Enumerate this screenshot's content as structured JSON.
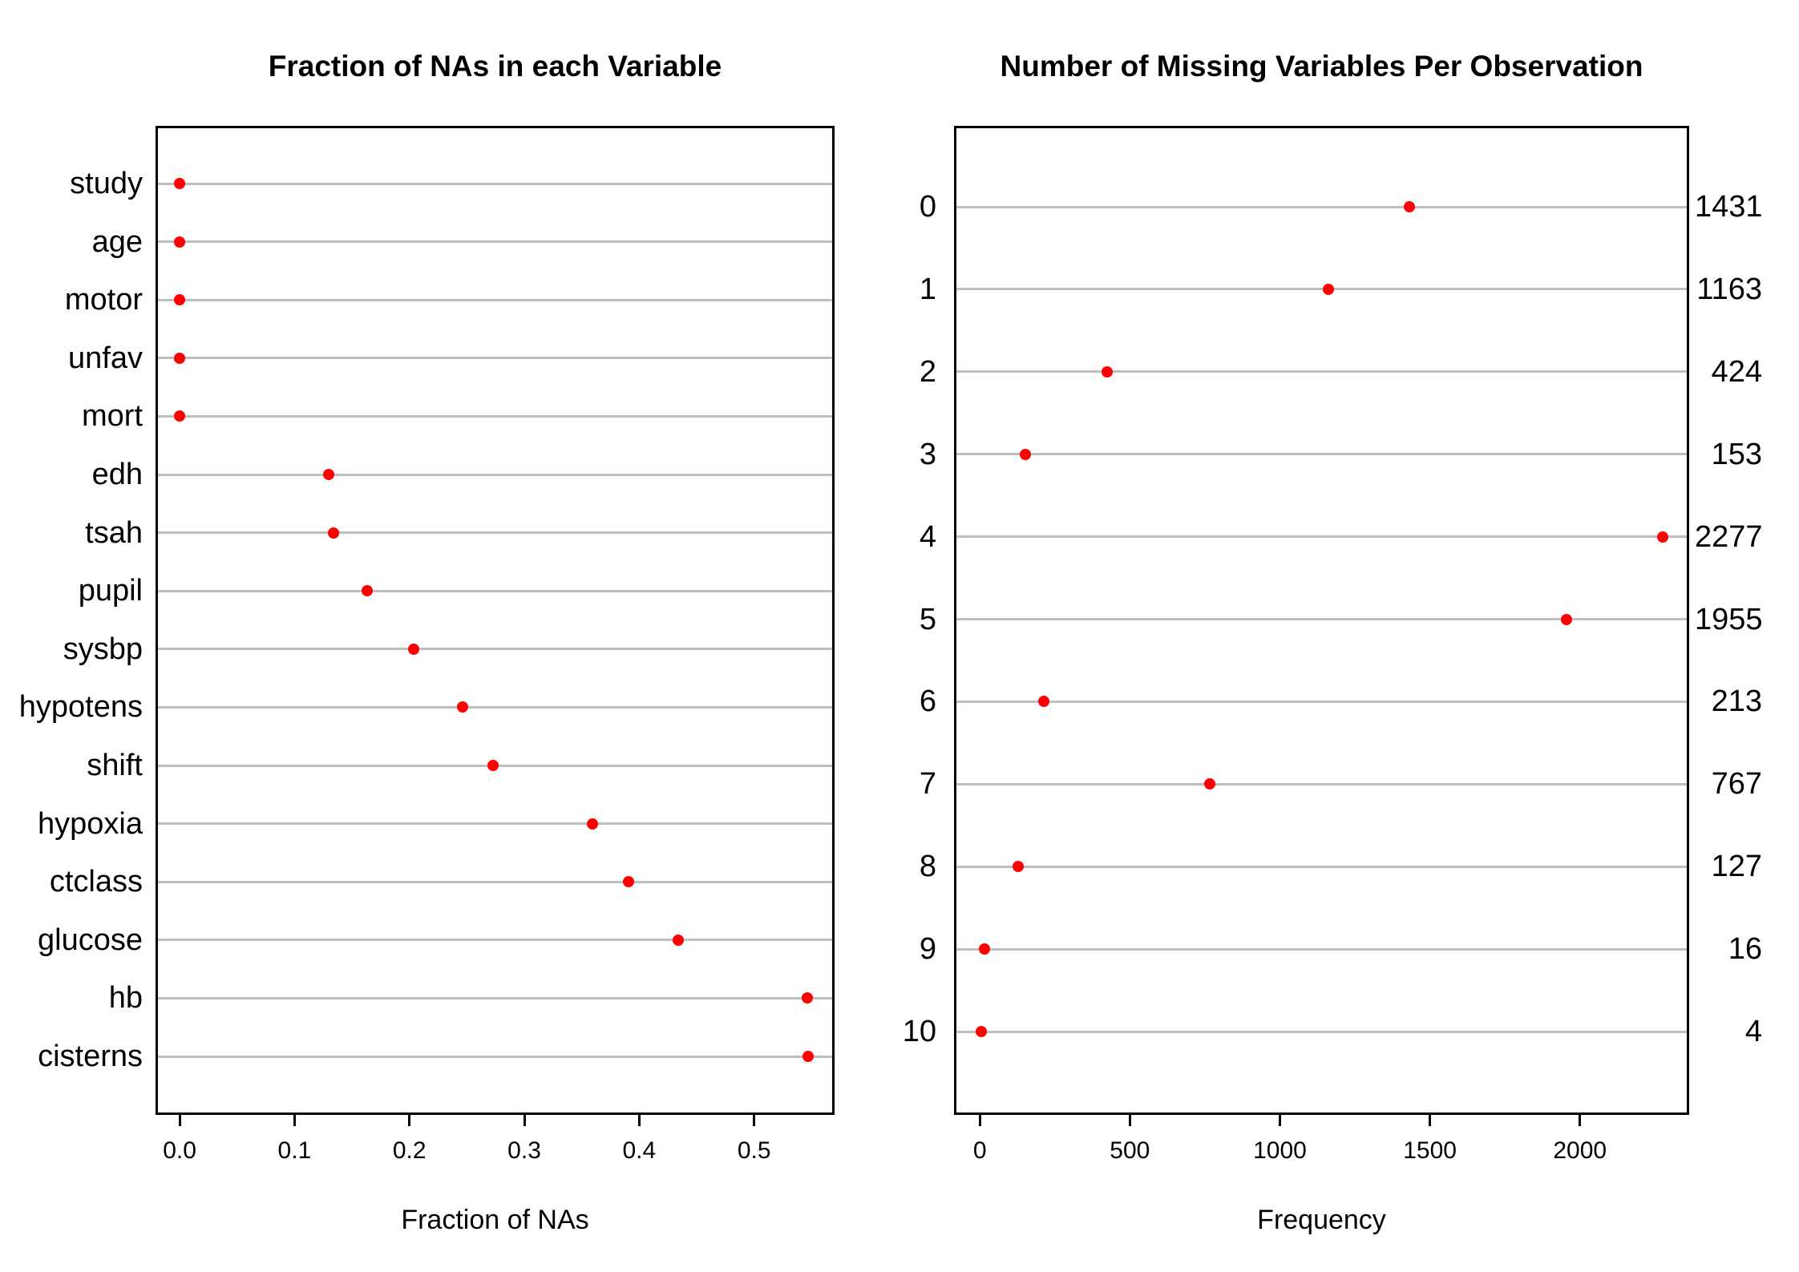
{
  "figure": {
    "background": "#ffffff",
    "text_color": "#000000",
    "grid_color": "#bfbfbf",
    "axis_color": "#000000",
    "dot_color": "#ff0000"
  },
  "chart_data": [
    {
      "type": "scatter",
      "subtype": "dotchart",
      "title": "Fraction of NAs in each Variable",
      "xlabel": "Fraction of NAs",
      "categories": [
        "study",
        "age",
        "motor",
        "unfav",
        "mort",
        "edh",
        "tsah",
        "pupil",
        "sysbp",
        "hypotens",
        "shift",
        "hypoxia",
        "ctclass",
        "glucose",
        "hb",
        "cisterns"
      ],
      "values": [
        0,
        0,
        0,
        0,
        0,
        0.13,
        0.134,
        0.163,
        0.204,
        0.246,
        0.273,
        0.359,
        0.391,
        0.434,
        0.546,
        0.547
      ],
      "xticks": [
        0,
        0.1,
        0.2,
        0.3,
        0.4,
        0.5
      ],
      "xtick_labels": [
        "0.0",
        "0.1",
        "0.2",
        "0.3",
        "0.4",
        "0.5"
      ],
      "xlim": [
        -0.021,
        0.57
      ],
      "grid": true,
      "legend": false,
      "ylabels_side": "left",
      "dot_color": "#ff0000"
    },
    {
      "type": "scatter",
      "subtype": "dotchart",
      "title": "Number of Missing Variables Per Observation",
      "xlabel": "Frequency",
      "categories": [
        "0",
        "1",
        "2",
        "3",
        "4",
        "5",
        "6",
        "7",
        "8",
        "9",
        "10"
      ],
      "values": [
        1431,
        1163,
        424,
        153,
        2277,
        1955,
        213,
        767,
        127,
        16,
        4
      ],
      "right_value_labels": [
        "1431",
        "1163",
        "424",
        "153",
        "2277",
        "1955",
        "213",
        "767",
        "127",
        "16",
        "4"
      ],
      "xticks": [
        0,
        500,
        1000,
        1500,
        2000
      ],
      "xtick_labels": [
        "0",
        "500",
        "1000",
        "1500",
        "2000"
      ],
      "xlim": [
        -86,
        2364
      ],
      "grid": true,
      "legend": false,
      "ylabels_side": "left",
      "dot_color": "#ff0000"
    }
  ]
}
